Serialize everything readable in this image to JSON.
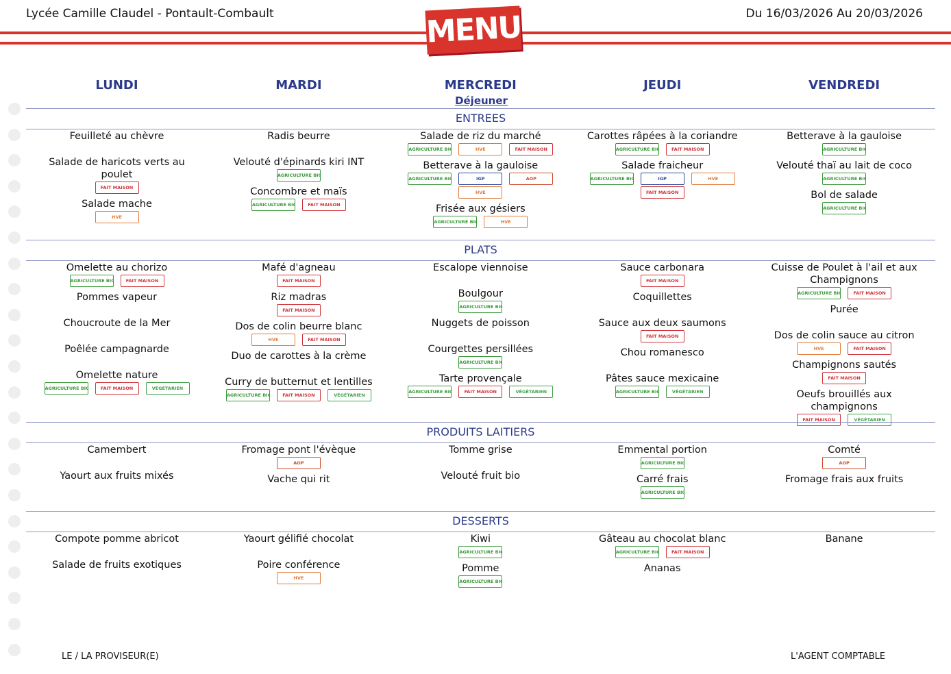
{
  "header": {
    "school": "Lycée Camille Claudel - Pontault-Combault",
    "dates": "Du 16/03/2026 Au 20/03/2026",
    "logo": "MENU"
  },
  "days": [
    "LUNDI",
    "MARDI",
    "MERCREDI",
    "JEUDI",
    "VENDREDI"
  ],
  "meal": "Déjeuner",
  "sections": [
    {
      "title": "ENTREES",
      "columns": [
        [
          {
            "name": "Feuilleté au chèvre",
            "labels": []
          },
          {
            "name": "Salade de haricots verts au poulet",
            "labels": [
              {
                "text": "FAIT MAISON",
                "color": "#d0343a"
              }
            ]
          },
          {
            "name": "Salade mache",
            "labels": [
              {
                "text": "HVE",
                "color": "#e07b39"
              }
            ]
          }
        ],
        [
          {
            "name": "Radis beurre",
            "labels": []
          },
          {
            "name": "Velouté d'épinards kiri INT",
            "labels": [
              {
                "text": "AGRICULTURE BIOLOGIQUE",
                "color": "#3a9a3a"
              }
            ]
          },
          {
            "name": "Concombre et maïs",
            "labels": [
              {
                "text": "AGRICULTURE BIOLOGIQUE",
                "color": "#3a9a3a"
              },
              {
                "text": "FAIT MAISON",
                "color": "#d0343a"
              }
            ]
          }
        ],
        [
          {
            "name": "Salade de riz du marché",
            "labels": [
              {
                "text": "AGRICULTURE BIOLOGIQUE",
                "color": "#3a9a3a"
              },
              {
                "text": "HVE",
                "color": "#e07b39"
              },
              {
                "text": "FAIT MAISON",
                "color": "#d0343a"
              }
            ]
          },
          {
            "name": "Betterave à la gauloise",
            "labels": [
              {
                "text": "AGRICULTURE BIOLOGIQUE",
                "color": "#3a9a3a"
              },
              {
                "text": "IGP",
                "color": "#2b4aa0"
              },
              {
                "text": "AOP",
                "color": "#d04a2a"
              },
              {
                "text": "HVE",
                "color": "#e07b39"
              }
            ]
          },
          {
            "name": "Frisée aux gésiers",
            "labels": [
              {
                "text": "AGRICULTURE BIOLOGIQUE",
                "color": "#3a9a3a"
              },
              {
                "text": "HVE",
                "color": "#e07b39"
              }
            ]
          }
        ],
        [
          {
            "name": "Carottes râpées à la coriandre",
            "labels": [
              {
                "text": "AGRICULTURE BIOLOGIQUE",
                "color": "#3a9a3a"
              },
              {
                "text": "FAIT MAISON",
                "color": "#d0343a"
              }
            ]
          },
          {
            "name": "Salade fraicheur",
            "labels": [
              {
                "text": "AGRICULTURE BIOLOGIQUE",
                "color": "#3a9a3a"
              },
              {
                "text": "IGP",
                "color": "#2b4aa0"
              },
              {
                "text": "HVE",
                "color": "#e07b39"
              },
              {
                "text": "FAIT MAISON",
                "color": "#d0343a"
              }
            ]
          }
        ],
        [
          {
            "name": "Betterave à la gauloise",
            "labels": [
              {
                "text": "AGRICULTURE BIOLOGIQUE",
                "color": "#3a9a3a"
              }
            ]
          },
          {
            "name": "Velouté thaï au lait de coco",
            "labels": [
              {
                "text": "AGRICULTURE BIOLOGIQUE",
                "color": "#3a9a3a"
              }
            ]
          },
          {
            "name": "Bol de salade",
            "labels": [
              {
                "text": "AGRICULTURE BIOLOGIQUE",
                "color": "#3a9a3a"
              }
            ]
          }
        ]
      ]
    },
    {
      "title": "PLATS",
      "columns": [
        [
          {
            "name": "Omelette au chorizo",
            "labels": [
              {
                "text": "AGRICULTURE BIOLOGIQUE",
                "color": "#3a9a3a"
              },
              {
                "text": "FAIT MAISON",
                "color": "#d0343a"
              }
            ]
          },
          {
            "name": "Pommes vapeur",
            "labels": []
          },
          {
            "name": "Choucroute de la Mer",
            "labels": []
          },
          {
            "name": "Poêlée campagnarde",
            "labels": []
          },
          {
            "name": "Omelette nature",
            "labels": [
              {
                "text": "AGRICULTURE BIOLOGIQUE",
                "color": "#3a9a3a"
              },
              {
                "text": "FAIT MAISON",
                "color": "#d0343a"
              },
              {
                "text": "VÉGÉTARIEN",
                "color": "#3f9f48"
              }
            ]
          }
        ],
        [
          {
            "name": "Mafé d'agneau",
            "labels": [
              {
                "text": "FAIT MAISON",
                "color": "#d0343a"
              }
            ]
          },
          {
            "name": "Riz madras",
            "labels": [
              {
                "text": "FAIT MAISON",
                "color": "#d0343a"
              }
            ]
          },
          {
            "name": "Dos de colin beurre blanc",
            "labels": [
              {
                "text": "HVE",
                "color": "#e07b39"
              },
              {
                "text": "FAIT MAISON",
                "color": "#d0343a"
              }
            ]
          },
          {
            "name": "Duo de carottes à la crème",
            "labels": []
          },
          {
            "name": "Curry de butternut et lentilles",
            "labels": [
              {
                "text": "AGRICULTURE BIOLOGIQUE",
                "color": "#3a9a3a"
              },
              {
                "text": "FAIT MAISON",
                "color": "#d0343a"
              },
              {
                "text": "VÉGÉTARIEN",
                "color": "#3f9f48"
              }
            ]
          }
        ],
        [
          {
            "name": "Escalope viennoise",
            "labels": []
          },
          {
            "name": "Boulgour",
            "labels": [
              {
                "text": "AGRICULTURE BIOLOGIQUE",
                "color": "#3a9a3a"
              }
            ]
          },
          {
            "name": "Nuggets de poisson",
            "labels": []
          },
          {
            "name": "Courgettes persillées",
            "labels": [
              {
                "text": "AGRICULTURE BIOLOGIQUE",
                "color": "#3a9a3a"
              }
            ]
          },
          {
            "name": "Tarte provençale",
            "labels": [
              {
                "text": "AGRICULTURE BIOLOGIQUE",
                "color": "#3a9a3a"
              },
              {
                "text": "FAIT MAISON",
                "color": "#d0343a"
              },
              {
                "text": "VÉGÉTARIEN",
                "color": "#3f9f48"
              }
            ]
          }
        ],
        [
          {
            "name": "Sauce carbonara",
            "labels": [
              {
                "text": "FAIT MAISON",
                "color": "#d0343a"
              }
            ]
          },
          {
            "name": "Coquillettes",
            "labels": []
          },
          {
            "name": "Sauce aux deux saumons",
            "labels": [
              {
                "text": "FAIT MAISON",
                "color": "#d0343a"
              }
            ]
          },
          {
            "name": "Chou romanesco",
            "labels": []
          },
          {
            "name": "Pâtes sauce mexicaine",
            "labels": [
              {
                "text": "AGRICULTURE BIOLOGIQUE",
                "color": "#3a9a3a"
              },
              {
                "text": "VÉGÉTARIEN",
                "color": "#3f9f48"
              }
            ]
          }
        ],
        [
          {
            "name": "Cuisse de Poulet à l'ail et aux Champignons",
            "labels": [
              {
                "text": "AGRICULTURE BIOLOGIQUE",
                "color": "#3a9a3a"
              },
              {
                "text": "FAIT MAISON",
                "color": "#d0343a"
              }
            ]
          },
          {
            "name": "Purée",
            "labels": []
          },
          {
            "name": "Dos de colin sauce au citron",
            "labels": [
              {
                "text": "HVE",
                "color": "#e07b39"
              },
              {
                "text": "FAIT MAISON",
                "color": "#d0343a"
              }
            ]
          },
          {
            "name": "Champignons sautés",
            "labels": [
              {
                "text": "FAIT MAISON",
                "color": "#d0343a"
              }
            ]
          },
          {
            "name": "Oeufs brouillés aux champignons",
            "labels": [
              {
                "text": "FAIT MAISON",
                "color": "#d0343a"
              },
              {
                "text": "VÉGÉTARIEN",
                "color": "#3f9f48"
              }
            ]
          }
        ]
      ]
    },
    {
      "title": "PRODUITS LAITIERS",
      "columns": [
        [
          {
            "name": "Camembert",
            "labels": []
          },
          {
            "name": "Yaourt aux fruits mixés",
            "labels": []
          }
        ],
        [
          {
            "name": "Fromage pont l'évèque",
            "labels": [
              {
                "text": "AOP",
                "color": "#d04a2a"
              }
            ]
          },
          {
            "name": "Vache qui rit",
            "labels": []
          }
        ],
        [
          {
            "name": "Tomme grise",
            "labels": []
          },
          {
            "name": "Velouté fruit bio",
            "labels": []
          }
        ],
        [
          {
            "name": "Emmental portion",
            "labels": [
              {
                "text": "AGRICULTURE BIOLOGIQUE",
                "color": "#3a9a3a"
              }
            ]
          },
          {
            "name": "Carré frais",
            "labels": [
              {
                "text": "AGRICULTURE BIOLOGIQUE",
                "color": "#3a9a3a"
              }
            ]
          }
        ],
        [
          {
            "name": "Comté",
            "labels": [
              {
                "text": "AOP",
                "color": "#d04a2a"
              }
            ]
          },
          {
            "name": "Fromage frais aux fruits",
            "labels": []
          }
        ]
      ]
    },
    {
      "title": "DESSERTS",
      "columns": [
        [
          {
            "name": "Compote pomme abricot",
            "labels": []
          },
          {
            "name": "Salade de fruits exotiques",
            "labels": []
          }
        ],
        [
          {
            "name": "Yaourt gélifié chocolat",
            "labels": []
          },
          {
            "name": "Poire conférence",
            "labels": [
              {
                "text": "HVE",
                "color": "#e07b39"
              }
            ]
          }
        ],
        [
          {
            "name": "Kiwi",
            "labels": [
              {
                "text": "AGRICULTURE BIOLOGIQUE",
                "color": "#3a9a3a"
              }
            ]
          },
          {
            "name": "Pomme",
            "labels": [
              {
                "text": "AGRICULTURE BIOLOGIQUE",
                "color": "#3a9a3a"
              }
            ]
          }
        ],
        [
          {
            "name": "Gâteau au chocolat blanc",
            "labels": [
              {
                "text": "AGRICULTURE BIOLOGIQUE",
                "color": "#3a9a3a"
              },
              {
                "text": "FAIT MAISON",
                "color": "#d0343a"
              }
            ]
          },
          {
            "name": "Ananas",
            "labels": []
          }
        ],
        [
          {
            "name": "Banane",
            "labels": []
          }
        ]
      ]
    }
  ],
  "footer": {
    "left": "LE / LA PROVISEUR(E)",
    "right": "L'AGENT COMPTABLE"
  }
}
